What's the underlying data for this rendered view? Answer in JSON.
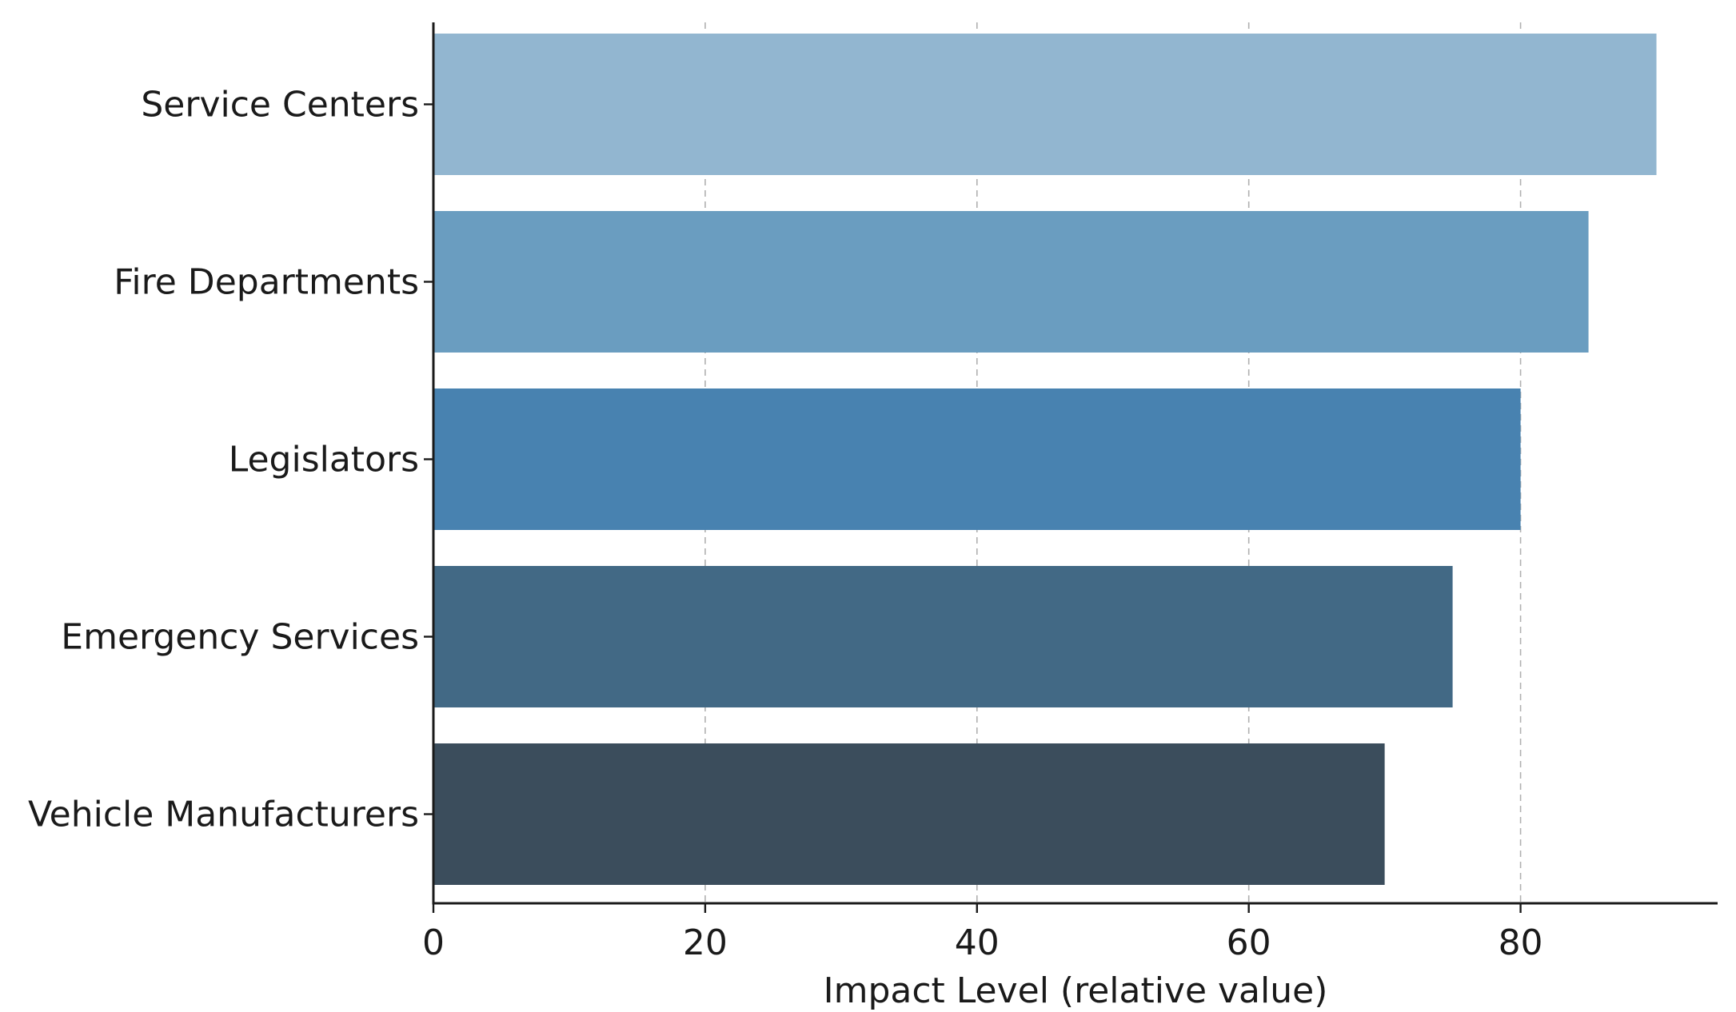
{
  "chart_data": {
    "type": "bar",
    "orientation": "horizontal",
    "title": "",
    "xlabel": "Impact Level (relative value)",
    "ylabel": "",
    "categories": [
      "Service Centers",
      "Fire Departments",
      "Legislators",
      "Emergency Services",
      "Vehicle Manufacturers"
    ],
    "values": [
      90,
      85,
      80,
      75,
      70
    ],
    "colors": [
      "#92b6d0",
      "#6a9dc0",
      "#4882b0",
      "#426985",
      "#3b4d5c"
    ],
    "xlim": [
      0,
      94.5
    ],
    "xticks": [
      0,
      20,
      40,
      60,
      80
    ],
    "grid": "x-dashed",
    "legend": "none"
  }
}
